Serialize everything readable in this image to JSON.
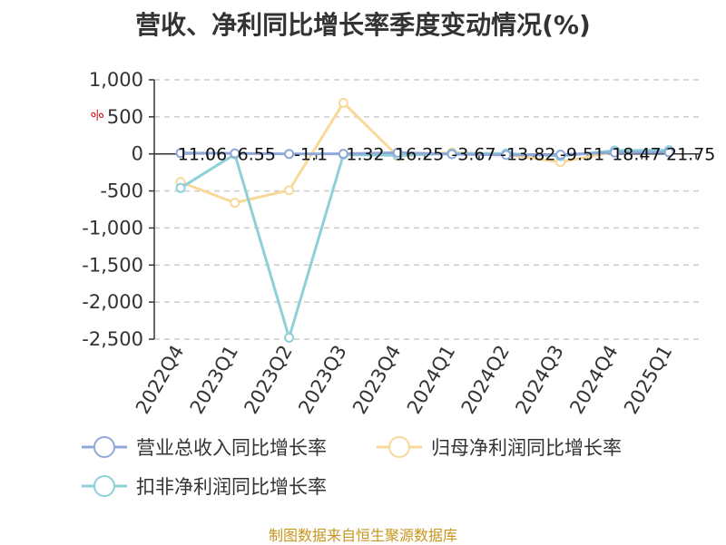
{
  "title": "营收、净利同比增长率季度变动情况(%)",
  "source": "制图数据来自恒生聚源数据库",
  "chart_data": {
    "type": "line",
    "title": "营收、净利同比增长率季度变动情况(%)",
    "y_unit": "%",
    "categories": [
      "2022Q4",
      "2023Q1",
      "2023Q2",
      "2023Q3",
      "2023Q4",
      "2024Q1",
      "2024Q2",
      "2024Q3",
      "2024Q4",
      "2025Q1"
    ],
    "ylim": [
      -2500,
      1000
    ],
    "yticks": [
      1000,
      500,
      0,
      -500,
      -1000,
      -1500,
      -2000,
      -2500
    ],
    "ytick_labels": [
      "1,000",
      "500",
      "0",
      "-500",
      "-1,000",
      "-1,500",
      "-2,000",
      "-2,500"
    ],
    "grid": true,
    "legend_position": "bottom",
    "series": [
      {
        "name": "营业总收入同比增长率",
        "color": "#8fa8d8",
        "values": [
          11.06,
          6.55,
          -1.1,
          1.32,
          16.25,
          -3.67,
          -13.82,
          -9.51,
          18.47,
          21.75
        ],
        "labels": [
          "11.06",
          "6.55",
          "-1.1",
          "1.32",
          "16.25",
          "-3.67",
          "-13.82",
          "-9.51",
          "18.47",
          "21.75"
        ]
      },
      {
        "name": "归母净利润同比增长率",
        "color": "#f9d99a",
        "values": [
          -380,
          -660,
          -490,
          690,
          -30,
          20,
          -10,
          -110,
          30,
          40
        ]
      },
      {
        "name": "扣非净利润同比增长率",
        "color": "#8ed0d8",
        "values": [
          -460,
          -5,
          -2480,
          -10,
          -20,
          5,
          5,
          -30,
          45,
          50
        ]
      }
    ]
  }
}
